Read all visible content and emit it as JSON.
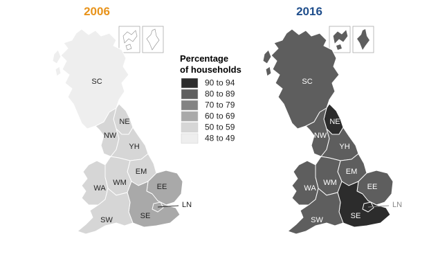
{
  "maps": [
    {
      "year": "2006",
      "year_color": "#e8931b",
      "regions": {
        "SC": {
          "label": "SC",
          "fill": "#eeeeee",
          "text": "#222222"
        },
        "NE": {
          "label": "NE",
          "fill": "#d6d6d6",
          "text": "#222222"
        },
        "NW": {
          "label": "NW",
          "fill": "#d6d6d6",
          "text": "#222222"
        },
        "YH": {
          "label": "YH",
          "fill": "#d6d6d6",
          "text": "#222222"
        },
        "EM": {
          "label": "EM",
          "fill": "#d6d6d6",
          "text": "#222222"
        },
        "WA": {
          "label": "WA",
          "fill": "#d6d6d6",
          "text": "#222222"
        },
        "WM": {
          "label": "WM",
          "fill": "#d6d6d6",
          "text": "#222222"
        },
        "EE": {
          "label": "EE",
          "fill": "#a9a9a9",
          "text": "#222222"
        },
        "SE": {
          "label": "SE",
          "fill": "#a9a9a9",
          "text": "#222222"
        },
        "SW": {
          "label": "SW",
          "fill": "#d6d6d6",
          "text": "#222222"
        },
        "LN": {
          "label": "LN",
          "fill": "#a9a9a9",
          "text": "#222222"
        }
      }
    },
    {
      "year": "2016",
      "year_color": "#1f4e8c",
      "regions": {
        "SC": {
          "label": "SC",
          "fill": "#5e5e5e",
          "text": "#ffffff"
        },
        "NE": {
          "label": "NE",
          "fill": "#2c2c2c",
          "text": "#ffffff"
        },
        "NW": {
          "label": "NW",
          "fill": "#5e5e5e",
          "text": "#ffffff"
        },
        "YH": {
          "label": "YH",
          "fill": "#5e5e5e",
          "text": "#ffffff"
        },
        "EM": {
          "label": "EM",
          "fill": "#5e5e5e",
          "text": "#ffffff"
        },
        "WA": {
          "label": "WA",
          "fill": "#5e5e5e",
          "text": "#ffffff"
        },
        "WM": {
          "label": "WM",
          "fill": "#5e5e5e",
          "text": "#ffffff"
        },
        "EE": {
          "label": "EE",
          "fill": "#5e5e5e",
          "text": "#ffffff"
        },
        "SE": {
          "label": "SE",
          "fill": "#2c2c2c",
          "text": "#ffffff"
        },
        "SW": {
          "label": "SW",
          "fill": "#5e5e5e",
          "text": "#ffffff"
        },
        "LN": {
          "label": "LN",
          "fill": "#2c2c2c",
          "text": "#888888"
        }
      }
    }
  ],
  "legend": {
    "title_line1": "Percentage",
    "title_line2": "of households",
    "items": [
      {
        "label": "90 to 94",
        "color": "#2c2c2c"
      },
      {
        "label": "80 to 89",
        "color": "#5e5e5e"
      },
      {
        "label": "70 to 79",
        "color": "#838383"
      },
      {
        "label": "60 to 69",
        "color": "#a9a9a9"
      },
      {
        "label": "50 to 59",
        "color": "#d6d6d6"
      },
      {
        "label": "48 to 49",
        "color": "#eeeeee"
      }
    ]
  }
}
